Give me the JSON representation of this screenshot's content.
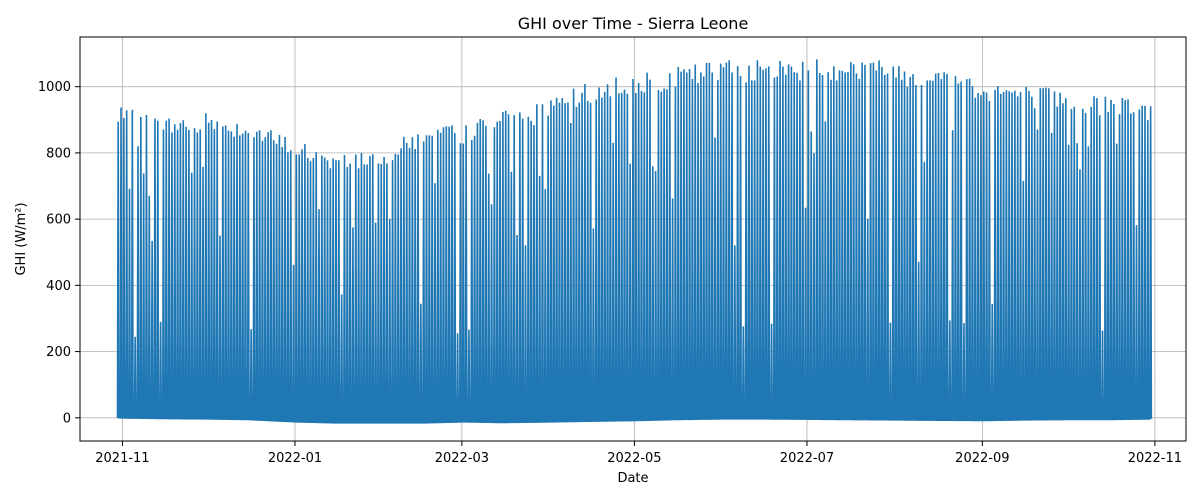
{
  "chart_data": {
    "type": "line",
    "title": "GHI over Time - Sierra Leone",
    "xlabel": "Date",
    "ylabel": "GHI (W/m²)",
    "xlim": [
      "2021-10-17",
      "2022-11-12"
    ],
    "ylim": [
      -70,
      1150
    ],
    "x_ticks": [
      {
        "date": "2021-11-01",
        "label": "2021-11"
      },
      {
        "date": "2022-01-01",
        "label": "2022-01"
      },
      {
        "date": "2022-03-01",
        "label": "2022-03"
      },
      {
        "date": "2022-05-01",
        "label": "2022-05"
      },
      {
        "date": "2022-07-01",
        "label": "2022-07"
      },
      {
        "date": "2022-09-01",
        "label": "2022-09"
      },
      {
        "date": "2022-11-01",
        "label": "2022-11"
      }
    ],
    "y_ticks": [
      0,
      200,
      400,
      600,
      800,
      1000
    ],
    "grid": true,
    "colors": {
      "series": "#1f77b4",
      "grid": "#b0b0b0",
      "axis": "#000000"
    },
    "series": [
      {
        "x": [
          "2021-10-30",
          "2021-11-15",
          "2021-12-01",
          "2021-12-15",
          "2022-01-01",
          "2022-01-15",
          "2022-02-01",
          "2022-02-15",
          "2022-03-01",
          "2022-03-15",
          "2022-04-01",
          "2022-04-15",
          "2022-05-01",
          "2022-05-15",
          "2022-06-01",
          "2022-06-15",
          "2022-07-01",
          "2022-07-15",
          "2022-08-01",
          "2022-08-15",
          "2022-09-01",
          "2022-09-15",
          "2022-10-01",
          "2022-10-15",
          "2022-10-30"
        ],
        "y_max": [
          940,
          910,
          925,
          900,
          840,
          800,
          820,
          880,
          890,
          930,
          960,
          1020,
          1050,
          1060,
          1090,
          1080,
          1095,
          1095,
          1080,
          1060,
          1030,
          1010,
          990,
          975,
          960
        ],
        "y_min": [
          0,
          -2,
          -3,
          -5,
          -12,
          -15,
          -15,
          -15,
          -12,
          -14,
          -12,
          -10,
          -8,
          -5,
          -3,
          -3,
          -4,
          -5,
          -6,
          -7,
          -8,
          -6,
          -5,
          -5,
          -3
        ]
      }
    ]
  }
}
